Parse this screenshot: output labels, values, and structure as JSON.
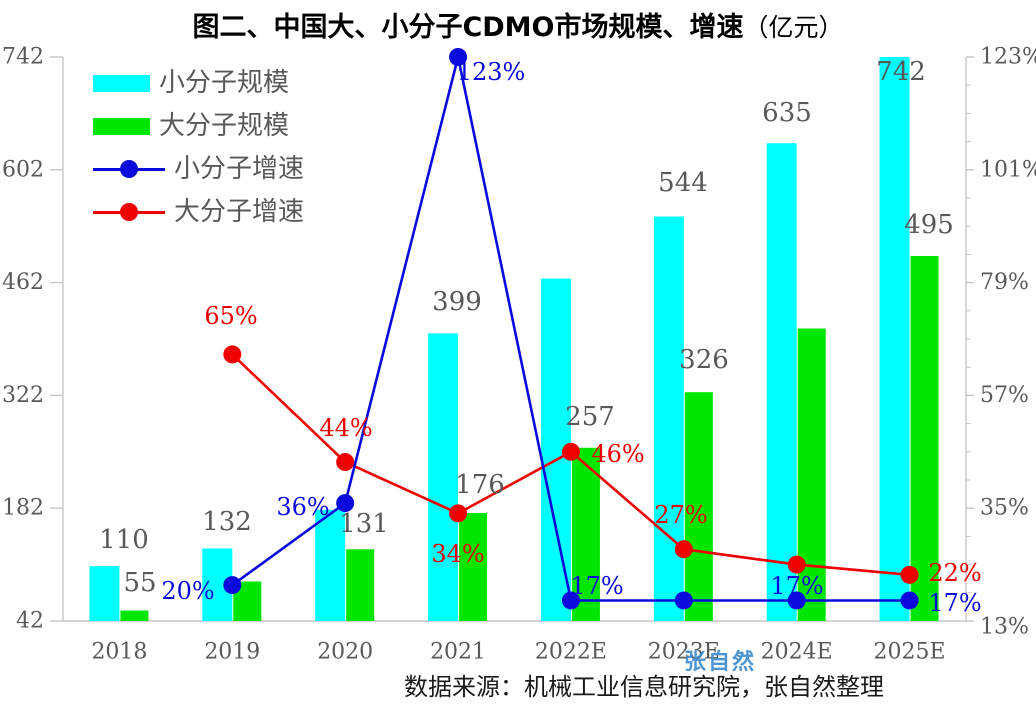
{
  "title": {
    "main": "图二、中国大、小分子CDMO市场规模、增速",
    "unit": "（亿元）"
  },
  "footer": {
    "source": "数据来源：机械工业信息研究院，张自然整理"
  },
  "watermark": "张自然",
  "colors": {
    "small_bar": "#00ffff",
    "large_bar": "#00e600",
    "small_line": "#0a0adc",
    "large_line": "#ee0000",
    "label": "#595959",
    "axis": "#c6c6c6",
    "watermark": "#3e8ed0"
  },
  "legend": {
    "position": "top-left",
    "items": [
      {
        "key": "small-bar",
        "label": "小分子规模",
        "type": "bar",
        "color_key": "small_bar"
      },
      {
        "key": "large-bar",
        "label": "大分子规模",
        "type": "bar",
        "color_key": "large_bar"
      },
      {
        "key": "small-line",
        "label": "小分子增速",
        "type": "line",
        "color_key": "small_line"
      },
      {
        "key": "large-line",
        "label": "大分子增速",
        "type": "line",
        "color_key": "large_line"
      }
    ]
  },
  "chart_data": {
    "type": "bar+line combo (dual axis)",
    "categories": [
      "2018",
      "2019",
      "2020",
      "2021",
      "2022E",
      "2023E",
      "2024E",
      "2025E"
    ],
    "bar_series": [
      {
        "key": "small",
        "name": "小分子规模",
        "axis": "left",
        "values": [
          110,
          132,
          180,
          399,
          467,
          544,
          635,
          742
        ],
        "labels": [
          "110",
          "132",
          "",
          "399",
          "",
          "544",
          "635",
          "742"
        ]
      },
      {
        "key": "large",
        "name": "大分子规模",
        "axis": "left",
        "values": [
          55,
          91,
          131,
          176,
          257,
          326,
          405,
          495
        ],
        "labels": [
          "55",
          "",
          "131",
          "176",
          "257",
          "326",
          "",
          "495"
        ]
      }
    ],
    "line_series": [
      {
        "key": "small",
        "name": "小分子增速",
        "axis": "right",
        "x_start": 1,
        "values_pct": [
          20,
          36,
          123,
          17,
          17,
          17,
          17
        ],
        "labels": [
          "20%",
          "36%",
          "123%",
          "17%",
          "",
          "17%",
          "17%"
        ]
      },
      {
        "key": "large",
        "name": "大分子增速",
        "axis": "right",
        "x_start": 1,
        "values_pct": [
          65,
          44,
          34,
          46,
          27,
          24,
          22
        ],
        "labels": [
          "65%",
          "44%",
          "34%",
          "46%",
          "27%",
          "",
          "22%"
        ]
      }
    ],
    "left_axis": {
      "min": 42,
      "max": 742,
      "ticks": [
        "742",
        "602",
        "462",
        "322",
        "182",
        "42"
      ]
    },
    "right_axis": {
      "min": 13,
      "max": 123,
      "minor_step": 5.5,
      "ticks": [
        "123%",
        "101%",
        "79%",
        "57%",
        "35%",
        "13%"
      ]
    },
    "grid": "off"
  }
}
